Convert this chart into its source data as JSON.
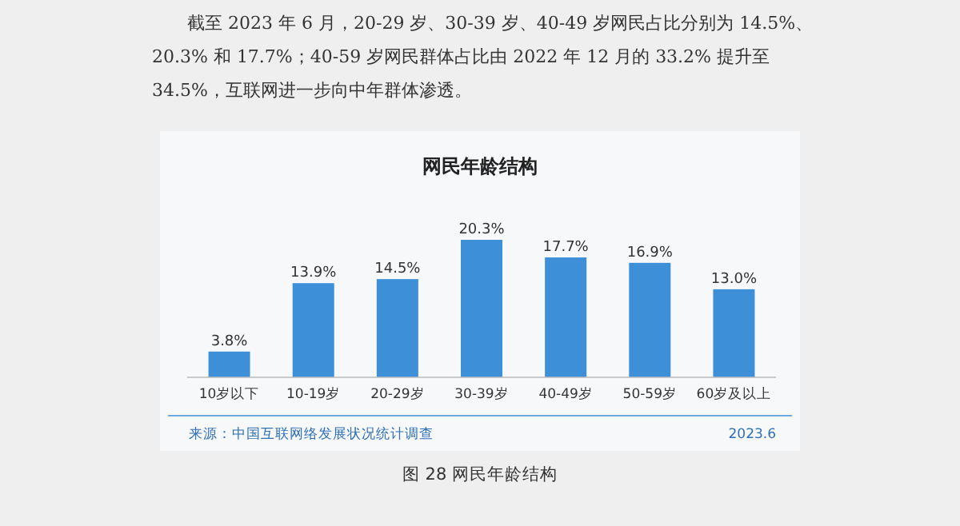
{
  "chart_data": {
    "type": "bar",
    "title": "网民年龄结构",
    "categories": [
      "10岁以下",
      "10-19岁",
      "20-29岁",
      "30-39岁",
      "40-49岁",
      "50-59岁",
      "60岁及以上"
    ],
    "values": [
      3.8,
      13.9,
      14.5,
      20.3,
      17.7,
      16.9,
      13.0
    ],
    "value_labels": [
      "3.8%",
      "13.9%",
      "14.5%",
      "20.3%",
      "17.7%",
      "16.9%",
      "13.0%"
    ],
    "color": "#3d8fd8",
    "annotations": [
      "截至 2023 年 6 月，20-29 岁、30-39 岁、40-49 岁网民占比分别为 14.5%、20.3% 和 17.7%；40-59 岁网民群体占比由 2022 年 12 月的 33.2% 提升至 34.5%，互联网进一步向中年群体渗透。",
      "来源：中国互联网络发展状况统计调查",
      "2023.6",
      "图 28 网民年龄结构"
    ]
  }
}
